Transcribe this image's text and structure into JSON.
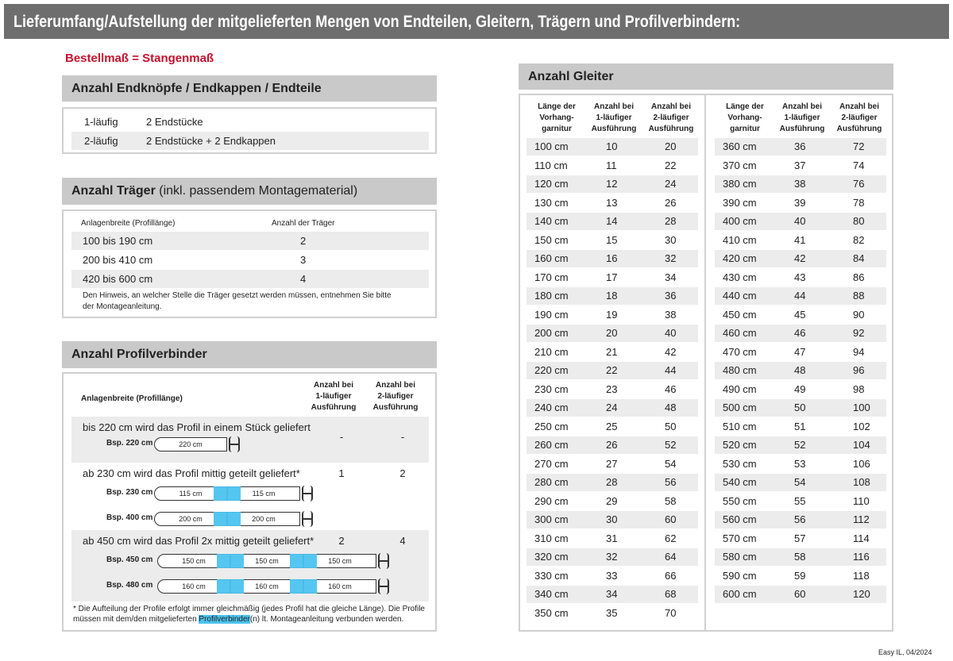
{
  "header": {
    "title": "Lieferumfang/Aufstellung der mitgelieferten Mengen von Endteilen, Gleitern, Trägern und Profilverbindern:"
  },
  "subtitle": "Bestellmaß = Stangenmaß",
  "endteile": {
    "title": "Anzahl Endknöpfe / Endkappen / Endteile",
    "rows": [
      [
        "1-läufig",
        "2 Endstücke"
      ],
      [
        "2-läufig",
        "2 Endstücke + 2 Endkappen"
      ]
    ]
  },
  "traeger": {
    "title": "Anzahl Träger",
    "title_note": "(inkl. passendem Montagematerial)",
    "columns": [
      "Anlagenbreite (Profillänge)",
      "Anzahl der Träger"
    ],
    "rows": [
      [
        "100 bis 190 cm",
        "2"
      ],
      [
        "200 bis 410 cm",
        "3"
      ],
      [
        "420 bis 600 cm",
        "4"
      ]
    ],
    "note": "Den Hinweis, an welcher Stelle die Träger gesetzt werden müssen, entnehmen Sie bitte der Montageanleitung."
  },
  "profilverbinder": {
    "title": "Anzahl Profilverbinder",
    "columns": [
      [
        "Anlagenbreite (Profillänge)"
      ],
      [
        "Anzahl bei",
        "1-läufiger",
        "Ausführung"
      ],
      [
        "Anzahl bei",
        "2-läufiger",
        "Ausführung"
      ]
    ],
    "groups": [
      {
        "text": "bis 220 cm wird das Profil in einem Stück geliefert",
        "values": [
          "-",
          "-"
        ],
        "examples": [
          {
            "label": "Bsp. 220 cm",
            "pieces": [
              "220 cm"
            ]
          }
        ]
      },
      {
        "text": "ab 230 cm wird das Profil mittig geteilt geliefert*",
        "values": [
          "1",
          "2"
        ],
        "examples": [
          {
            "label": "Bsp. 230 cm",
            "pieces": [
              "115 cm",
              "115 cm"
            ]
          },
          {
            "label": "Bsp. 400 cm",
            "pieces": [
              "200 cm",
              "200 cm"
            ]
          }
        ]
      },
      {
        "text": "ab 450 cm wird das Profil 2x mittig geteilt geliefert*",
        "values": [
          "2",
          "4"
        ],
        "examples": [
          {
            "label": "Bsp. 450 cm",
            "pieces": [
              "150 cm",
              "150 cm",
              "150 cm"
            ]
          },
          {
            "label": "Bsp. 480 cm",
            "pieces": [
              "160 cm",
              "160 cm",
              "160 cm"
            ]
          }
        ]
      }
    ],
    "footnote": [
      "* Die Aufteilung der Profile erfolgt immer gleichmäßig (jedes Profil hat die gleiche Länge). Die Profile müssen mit dem/den mitgelieferten ",
      "Profilverbinder",
      "(n) lt. Montageanleitung verbunden werden."
    ]
  },
  "gleiter": {
    "title": "Anzahl Gleiter",
    "columns": [
      [
        "Länge der",
        "Vorhang-",
        "garnitur"
      ],
      [
        "Anzahl bei",
        "1-läufiger",
        "Ausführung"
      ],
      [
        "Anzahl bei",
        "2-läufiger",
        "Ausführung"
      ]
    ],
    "tables": [
      [
        [
          "100 cm",
          "10",
          "20"
        ],
        [
          "110 cm",
          "11",
          "22"
        ],
        [
          "120 cm",
          "12",
          "24"
        ],
        [
          "130 cm",
          "13",
          "26"
        ],
        [
          "140 cm",
          "14",
          "28"
        ],
        [
          "150 cm",
          "15",
          "30"
        ],
        [
          "160 cm",
          "16",
          "32"
        ],
        [
          "170 cm",
          "17",
          "34"
        ],
        [
          "180 cm",
          "18",
          "36"
        ],
        [
          "190 cm",
          "19",
          "38"
        ],
        [
          "200 cm",
          "20",
          "40"
        ],
        [
          "210 cm",
          "21",
          "42"
        ],
        [
          "220 cm",
          "22",
          "44"
        ],
        [
          "230 cm",
          "23",
          "46"
        ],
        [
          "240 cm",
          "24",
          "48"
        ],
        [
          "250 cm",
          "25",
          "50"
        ],
        [
          "260 cm",
          "26",
          "52"
        ],
        [
          "270 cm",
          "27",
          "54"
        ],
        [
          "280 cm",
          "28",
          "56"
        ],
        [
          "290 cm",
          "29",
          "58"
        ],
        [
          "300 cm",
          "30",
          "60"
        ],
        [
          "310 cm",
          "31",
          "62"
        ],
        [
          "320 cm",
          "32",
          "64"
        ],
        [
          "330 cm",
          "33",
          "66"
        ],
        [
          "340 cm",
          "34",
          "68"
        ],
        [
          "350 cm",
          "35",
          "70"
        ]
      ],
      [
        [
          "360 cm",
          "36",
          "72"
        ],
        [
          "370 cm",
          "37",
          "74"
        ],
        [
          "380 cm",
          "38",
          "76"
        ],
        [
          "390 cm",
          "39",
          "78"
        ],
        [
          "400 cm",
          "40",
          "80"
        ],
        [
          "410 cm",
          "41",
          "82"
        ],
        [
          "420 cm",
          "42",
          "84"
        ],
        [
          "430 cm",
          "43",
          "86"
        ],
        [
          "440 cm",
          "44",
          "88"
        ],
        [
          "450 cm",
          "45",
          "90"
        ],
        [
          "460 cm",
          "46",
          "92"
        ],
        [
          "470 cm",
          "47",
          "94"
        ],
        [
          "480 cm",
          "48",
          "96"
        ],
        [
          "490 cm",
          "49",
          "98"
        ],
        [
          "500 cm",
          "50",
          "100"
        ],
        [
          "510 cm",
          "51",
          "102"
        ],
        [
          "520 cm",
          "52",
          "104"
        ],
        [
          "530 cm",
          "53",
          "106"
        ],
        [
          "540 cm",
          "54",
          "108"
        ],
        [
          "550 cm",
          "55",
          "110"
        ],
        [
          "560 cm",
          "56",
          "112"
        ],
        [
          "570 cm",
          "57",
          "114"
        ],
        [
          "580 cm",
          "58",
          "116"
        ],
        [
          "590 cm",
          "59",
          "118"
        ],
        [
          "600 cm",
          "60",
          "120"
        ]
      ]
    ]
  },
  "footer": "Easy IL, 04/2024"
}
